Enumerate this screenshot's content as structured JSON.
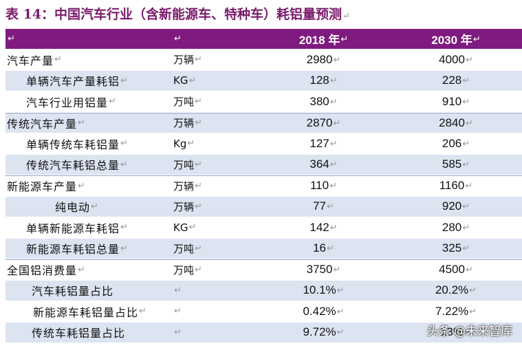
{
  "title": "表 14：中国汽车行业（含新能源车、特种车）耗铝量预测",
  "return_mark": "↵",
  "columns": {
    "name": "",
    "unit": "",
    "y2018": "2018 年",
    "y2030": "2030 年"
  },
  "rows": [
    {
      "name": "汽车产量",
      "unit": "万辆",
      "y2018": "2980",
      "y2030": "4000"
    },
    {
      "name": "单辆汽车产量耗铝",
      "unit": "KG",
      "y2018": "128",
      "y2030": "228"
    },
    {
      "name": "汽车行业用铝量",
      "unit": "万吨",
      "y2018": "380",
      "y2030": "910"
    },
    {
      "name": "传统汽车产量",
      "unit": "万辆",
      "y2018": "2870",
      "y2030": "2840"
    },
    {
      "name": "单辆传统车耗铝量",
      "unit": "Kg",
      "y2018": "127",
      "y2030": "206"
    },
    {
      "name": "传统汽车耗铝总量",
      "unit": "万吨",
      "y2018": "364",
      "y2030": "585"
    },
    {
      "name": "新能源车产量",
      "unit": "万辆",
      "y2018": "110",
      "y2030": "1160"
    },
    {
      "name": "纯电动",
      "unit": "万辆",
      "y2018": "77",
      "y2030": "920"
    },
    {
      "name": "单辆新能源车耗铝",
      "unit": "KG",
      "y2018": "142",
      "y2030": "280"
    },
    {
      "name": "新能源车耗铝总量",
      "unit": "万吨",
      "y2018": "16",
      "y2030": "325"
    },
    {
      "name": "全国铝消费量",
      "unit": "万吨",
      "y2018": "3750",
      "y2030": "4500"
    },
    {
      "name": "汽车耗铝量占比",
      "unit": "",
      "y2018": "10.1%",
      "y2030": "20.2%"
    },
    {
      "name": "新能源车耗铝量占比",
      "unit": "",
      "y2018": "0.42%",
      "y2030": "7.22%"
    },
    {
      "name": "传统车耗铝量占比",
      "unit": "",
      "y2018": "9.72%",
      "y2030": "13%"
    }
  ],
  "watermark": "头条 @未来智库",
  "colors": {
    "header_bg": "#7f1a7f",
    "stripe_bg": "#dce3f1",
    "title": "#7a1a6a"
  }
}
